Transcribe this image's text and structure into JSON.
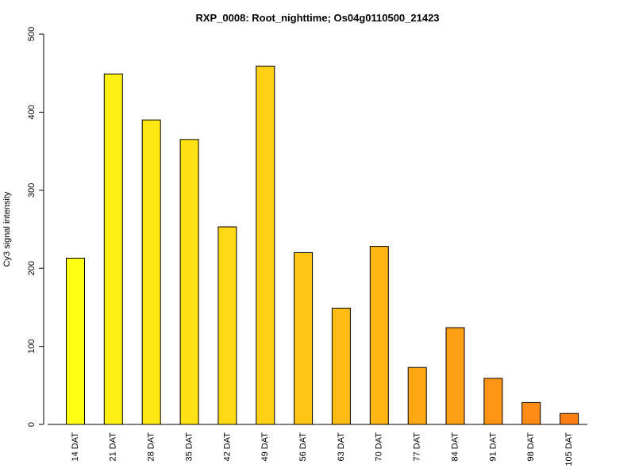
{
  "chart_data": {
    "type": "bar",
    "title": "RXP_0008: Root_nighttime; Os04g0110500_21423",
    "xlabel": "",
    "ylabel": "Cy3 signal intensity",
    "ylim": [
      0,
      500
    ],
    "yticks": [
      0,
      100,
      200,
      300,
      400,
      500
    ],
    "grid": false,
    "legend": "none",
    "categories": [
      "14 DAT",
      "21 DAT",
      "28 DAT",
      "35 DAT",
      "42 DAT",
      "49 DAT",
      "56 DAT",
      "63 DAT",
      "70 DAT",
      "77 DAT",
      "84 DAT",
      "91 DAT",
      "98 DAT",
      "105 DAT"
    ],
    "values": [
      213,
      449,
      390,
      365,
      253,
      459,
      220,
      149,
      228,
      73,
      124,
      59,
      28,
      14
    ],
    "colors": [
      "#ffff14",
      "#fff014",
      "#ffe714",
      "#ffe114",
      "#ffd814",
      "#ffd014",
      "#ffc414",
      "#ffbc14",
      "#ffb514",
      "#ffa814",
      "#ff9f14",
      "#ff9414",
      "#ff8a14",
      "#ff7f14"
    ]
  }
}
